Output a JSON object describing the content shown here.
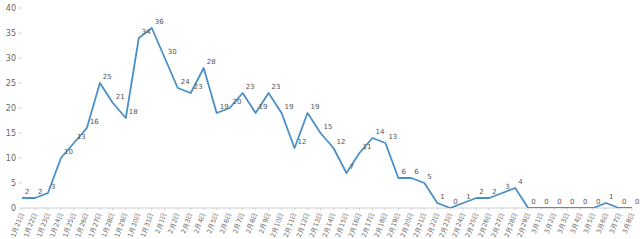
{
  "chart_data": {
    "type": "line",
    "categories": [
      "1月21日",
      "1月22日",
      "1月23日",
      "1月24日",
      "1月25日",
      "1月26日",
      "1月27日",
      "1月28日",
      "1月29日",
      "1月30日",
      "1月31日",
      "2月1日",
      "2月2日",
      "2月3日",
      "2月4日",
      "2月5日",
      "2月6日",
      "2月7日",
      "2月8日",
      "2月9日",
      "2月10日",
      "2月11日",
      "2月12日",
      "2月13日",
      "2月14日",
      "2月15日",
      "2月16日",
      "2月17日",
      "2月18日",
      "2月19日",
      "2月20日",
      "2月21日",
      "2月22日",
      "2月23日",
      "2月24日",
      "2月25日",
      "2月26日",
      "2月27日",
      "2月28日",
      "2月29日",
      "3月1日",
      "3月2日",
      "3月3日",
      "3月4日",
      "3月5日",
      "3月6日",
      "3月7日",
      "3月8日"
    ],
    "values": [
      2,
      2,
      3,
      10,
      13,
      16,
      25,
      21,
      18,
      34,
      36,
      30,
      24,
      23,
      28,
      19,
      20,
      23,
      19,
      23,
      19,
      12,
      19,
      15,
      12,
      7,
      11,
      14,
      13,
      6,
      6,
      5,
      1,
      0,
      1,
      2,
      2,
      3,
      4,
      0,
      0,
      0,
      0,
      0,
      0,
      1,
      0,
      0
    ],
    "color": "#4a90c8",
    "ylim": [
      0,
      40
    ],
    "yticks": [
      0,
      5,
      10,
      15,
      20,
      25,
      30,
      35,
      40
    ],
    "grid": false,
    "data_labels": true
  }
}
